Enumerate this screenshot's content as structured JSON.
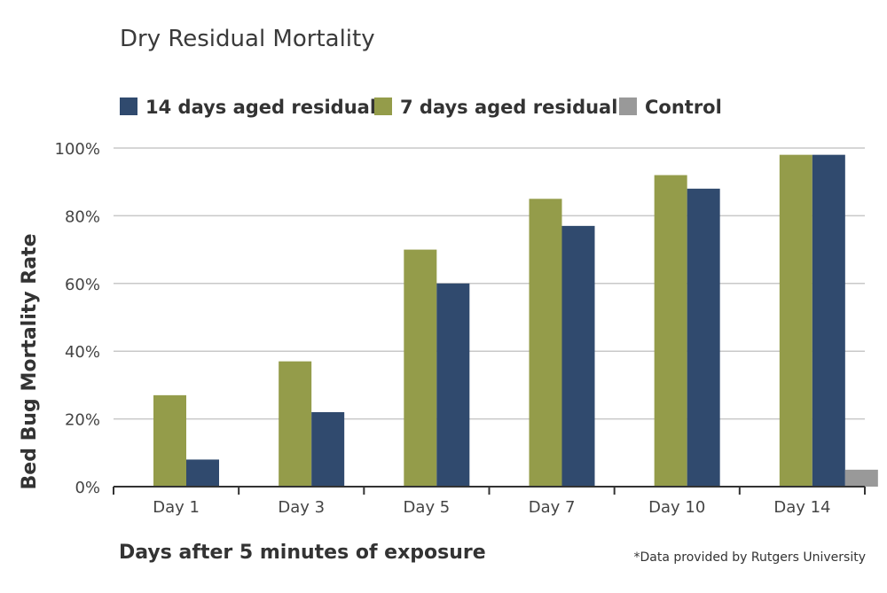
{
  "chart_data": {
    "type": "bar",
    "title": "Dry Residual Mortality",
    "xlabel": "Days after 5 minutes of exposure",
    "ylabel": "Bed Bug Mortality Rate",
    "footnote": "*Data provided by Rutgers University",
    "categories": [
      "Day 1",
      "Day 3",
      "Day 5",
      "Day 7",
      "Day 10",
      "Day 14"
    ],
    "ylim": [
      0,
      100
    ],
    "yticks": [
      "0%",
      "20%",
      "40%",
      "60%",
      "80%",
      "100%"
    ],
    "ytick_values": [
      0,
      20,
      40,
      60,
      80,
      100
    ],
    "grid": true,
    "legend_position": "top-left",
    "legend": [
      "14 days aged residual",
      "7 days aged residual",
      "Control"
    ],
    "bar_order": [
      "7 days aged residual",
      "14 days aged residual",
      "Control"
    ],
    "series": [
      {
        "name": "14 days aged residual",
        "color": "#304a6e",
        "values": [
          8,
          22,
          60,
          77,
          88,
          98
        ]
      },
      {
        "name": "7 days aged residual",
        "color": "#949c4a",
        "values": [
          27,
          37,
          70,
          85,
          92,
          98
        ]
      },
      {
        "name": "Control",
        "color": "#999999",
        "values": [
          0,
          0,
          0,
          0,
          0,
          5
        ]
      }
    ]
  }
}
